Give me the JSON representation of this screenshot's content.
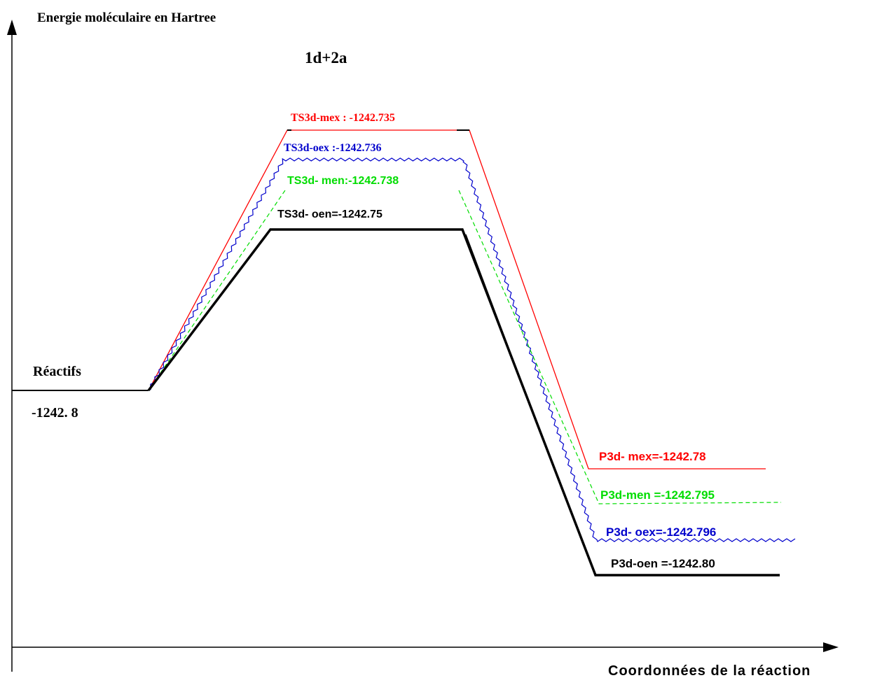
{
  "diagram": {
    "y_axis_label": "Energie moléculaire en Hartree",
    "title": "1d+2a",
    "x_axis_label": "Coordonnées de la réaction",
    "reactants": {
      "name": "Réactifs",
      "energy": "-1242. 8"
    },
    "transition_states": [
      {
        "label": "TS3d-mex : -1242.735",
        "color": "#ff0000"
      },
      {
        "label": "TS3d-oex :-1242.736",
        "color": "#0000cc"
      },
      {
        "label": "TS3d- men:-1242.738",
        "color": "#00dd00"
      },
      {
        "label": "TS3d- oen=-1242.75",
        "color": "#000000"
      }
    ],
    "products": [
      {
        "label": "P3d- mex=-1242.78",
        "color": "#ff0000"
      },
      {
        "label": "P3d-men =-1242.795",
        "color": "#00dd00"
      },
      {
        "label": "P3d- oex=-1242.796",
        "color": "#0000cc"
      },
      {
        "label": "P3d-oen =-1242.80",
        "color": "#000000"
      }
    ]
  }
}
